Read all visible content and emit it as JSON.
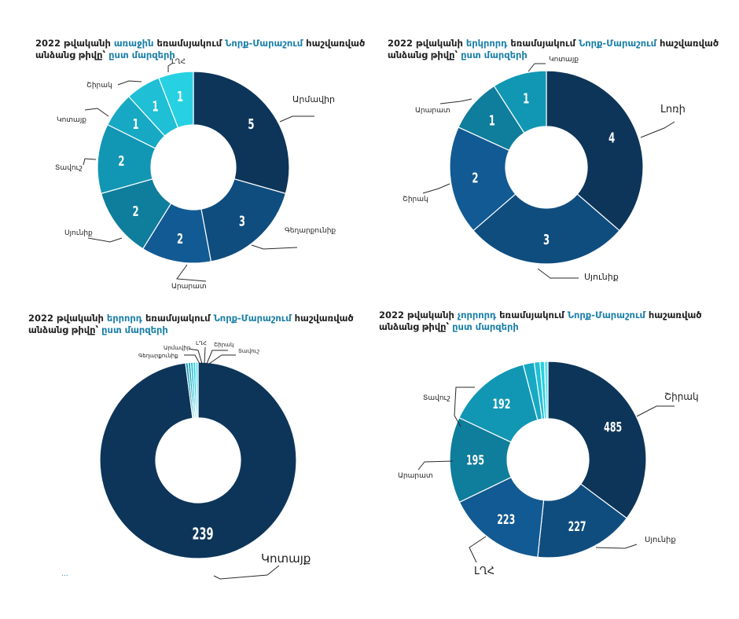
{
  "colors": {
    "dark": "#0d3559",
    "navy": "#0f4d7f",
    "blue": "#125a93",
    "teal1": "#0f7d9c",
    "teal2": "#1197b3",
    "teal3": "#17a9c4",
    "teal4": "#1fbfd6",
    "cyan": "#27d1e2",
    "highlight": "#1a7fa8"
  },
  "panels": [
    {
      "title_parts": [
        {
          "t": "2022 թվականի ",
          "h": false
        },
        {
          "t": "առաջին",
          "h": true
        },
        {
          "t": " եռամսյակում ",
          "h": false
        },
        {
          "t": "Նորք-Մարաշում",
          "h": true
        },
        {
          "t": " հաշվառված",
          "h": false
        }
      ],
      "title_line2": [
        {
          "t": "անձանց թիվը՝ ",
          "h": false
        },
        {
          "t": "ըստ մարզերի",
          "h": true
        }
      ]
    },
    {
      "title_parts": [
        {
          "t": "2022 թվականի ",
          "h": false
        },
        {
          "t": "երկրորդ",
          "h": true
        },
        {
          "t": " եռամսյակում ",
          "h": false
        },
        {
          "t": "Նորք-Մարաշում",
          "h": true
        },
        {
          "t": " հաշվառված",
          "h": false
        }
      ],
      "title_line2": [
        {
          "t": "անձանց թիվը՝ ",
          "h": false
        },
        {
          "t": "ըստ մարզերի",
          "h": true
        }
      ]
    },
    {
      "title_parts": [
        {
          "t": "2022 թվականի ",
          "h": false
        },
        {
          "t": "երրորդ",
          "h": true
        },
        {
          "t": " եռամսյակում ",
          "h": false
        },
        {
          "t": "Նորք-Մարաշում",
          "h": true
        },
        {
          "t": " հաշվառված",
          "h": false
        }
      ],
      "title_line2": [
        {
          "t": "անձանց թիվը՝ ",
          "h": false
        },
        {
          "t": "ըստ մարզերի",
          "h": true
        }
      ]
    },
    {
      "title_parts": [
        {
          "t": "2022 թվականի ",
          "h": false
        },
        {
          "t": "չորրորդ",
          "h": true
        },
        {
          "t": " եռամսյակում ",
          "h": false
        },
        {
          "t": "Նորք-Մարաշում",
          "h": true
        },
        {
          "t": " հաշառված",
          "h": false
        }
      ],
      "title_line2": [
        {
          "t": "անձանց թիվը՝ ",
          "h": false
        },
        {
          "t": "ըստ մարզերի",
          "h": true
        }
      ]
    }
  ],
  "chart_data": [
    {
      "type": "pie",
      "donut": true,
      "title": "2022 թվականի առաջին եռամսյակում Նորք-Մարաշում հաշվառված անձանց թիվը՝ ըստ մարզերի",
      "categories": [
        "Արմավիր",
        "Գեղարքունիք",
        "Արարատ",
        "Սյունիք",
        "Տավուշ",
        "Կոտայք",
        "Շիրակ",
        "ԼՂՀ"
      ],
      "values": [
        5,
        3,
        2,
        2,
        2,
        1,
        1,
        1
      ],
      "colors": [
        "#0d3559",
        "#0f4d7f",
        "#125a93",
        "#0f7d9c",
        "#1197b3",
        "#17a9c4",
        "#1fbfd6",
        "#27d1e2"
      ],
      "value_labels_shown": true
    },
    {
      "type": "pie",
      "donut": true,
      "title": "2022 թվականի երկրորդ եռամսյակում Նորք-Մարաշում հաշվառված անձանց թիվը՝ ըստ մարզերի",
      "categories": [
        "Լոռի",
        "Սյունիք",
        "Շիրակ",
        "Արարատ",
        "Կոտայք"
      ],
      "values": [
        4,
        3,
        2,
        1,
        1
      ],
      "colors": [
        "#0d3559",
        "#0f4d7f",
        "#125a93",
        "#0f7d9c",
        "#1197b3"
      ],
      "value_labels_shown": true
    },
    {
      "type": "pie",
      "donut": true,
      "title": "2022 թվականի երրորդ եռամսյակում Նորք-Մարաշում հաշվառված անձանց թիվը՝ ըստ մարզերի",
      "categories": [
        "Կոտայք",
        "Գեղարքունիք",
        "Արմավիր",
        "ԼՂՀ",
        "Շիրակ",
        "Տավուշ"
      ],
      "values": [
        239,
        1,
        1,
        1,
        1,
        1
      ],
      "colors": [
        "#0d3559",
        "#1197b3",
        "#17a9c4",
        "#1fbfd6",
        "#27d1e2",
        "#5fe0ee"
      ],
      "value_labels_shown": [
        true,
        false,
        false,
        false,
        false,
        false
      ]
    },
    {
      "type": "pie",
      "donut": true,
      "title": "2022 թվականի չորրորդ եռամսյակում Նորք-Մարաշում հաշառված անձանց թիվը՝ ըստ մարզերի",
      "categories": [
        "Շիրակ",
        "Սյունիք",
        "ԼՂՀ",
        "Արարատ",
        "Տավուշ",
        "",
        "",
        "",
        ""
      ],
      "values": [
        485,
        227,
        223,
        195,
        192,
        25,
        13,
        10,
        8
      ],
      "colors": [
        "#0d3559",
        "#0f4d7f",
        "#125a93",
        "#0f7d9c",
        "#1197b3",
        "#17a9c4",
        "#1fbfd6",
        "#27d1e2",
        "#5fe0ee"
      ],
      "value_labels_shown": [
        true,
        true,
        true,
        true,
        true,
        false,
        false,
        false,
        false
      ]
    }
  ],
  "footnote": "..."
}
